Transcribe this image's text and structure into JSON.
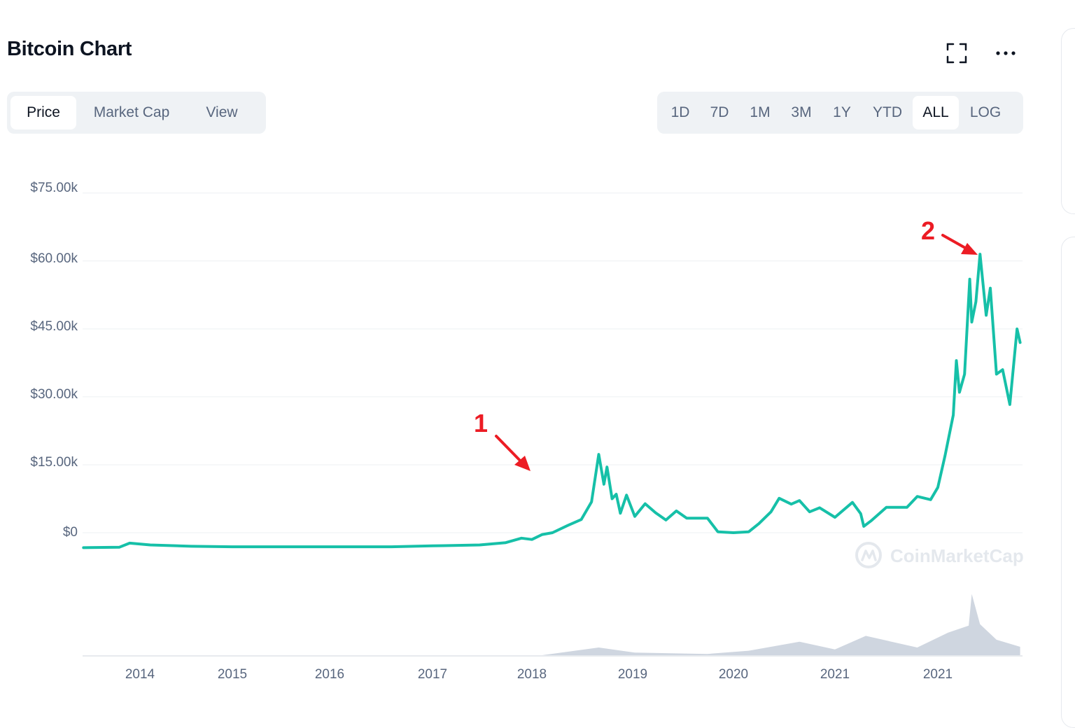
{
  "header": {
    "title": "Bitcoin Chart",
    "expand_icon": "fullscreen-icon",
    "more_icon": "more-horizontal-icon"
  },
  "left_tabs": [
    "Price",
    "Market Cap",
    "View"
  ],
  "left_active": "Price",
  "range_tabs": [
    "1D",
    "7D",
    "1M",
    "3M",
    "1Y",
    "YTD",
    "ALL",
    "LOG"
  ],
  "range_active": "ALL",
  "watermark": "CoinMarketCap",
  "annotations": [
    {
      "label": "1",
      "color": "#ec1c24"
    },
    {
      "label": "2",
      "color": "#ec1c24"
    }
  ],
  "colors": {
    "line": "#16c0a8",
    "volume": "#cfd6e0",
    "grid": "#eef0f3",
    "annotation": "#ec1c24"
  },
  "chart_data": {
    "type": "line",
    "title": "Bitcoin Chart",
    "xlabel": "",
    "ylabel": "",
    "y_tick_labels": [
      "$75.00k",
      "$60.00k",
      "$45.00k",
      "$30.00k",
      "$15.00k",
      "$0"
    ],
    "y_ticks": [
      75000,
      60000,
      45000,
      30000,
      15000,
      0
    ],
    "x_tick_labels": [
      "2014",
      "2015",
      "2016",
      "2017",
      "2018",
      "2019",
      "2020",
      "2021",
      "2021"
    ],
    "x_ticks": [
      2014.0,
      2014.9,
      2015.85,
      2016.85,
      2017.8,
      2018.78,
      2019.75,
      2020.75,
      2021.75
    ],
    "xlim": [
      2013.45,
      2022.6
    ],
    "ylim": [
      -4000,
      75000
    ],
    "grid": true,
    "series": [
      {
        "values": [
          [
            2013.45,
            -3300
          ],
          [
            2013.8,
            -3200
          ],
          [
            2013.9,
            -2300
          ],
          [
            2014.1,
            -2700
          ],
          [
            2014.5,
            -3000
          ],
          [
            2014.9,
            -3100
          ],
          [
            2015.85,
            -3100
          ],
          [
            2016.45,
            -3100
          ],
          [
            2016.85,
            -2900
          ],
          [
            2017.3,
            -2700
          ],
          [
            2017.55,
            -2200
          ],
          [
            2017.7,
            -1200
          ],
          [
            2017.8,
            -1500
          ],
          [
            2017.9,
            -400
          ],
          [
            2018.0,
            0
          ],
          [
            2018.15,
            1600
          ],
          [
            2018.28,
            2900
          ],
          [
            2018.38,
            6800
          ],
          [
            2018.45,
            17300
          ],
          [
            2018.5,
            10700
          ],
          [
            2018.53,
            14500
          ],
          [
            2018.58,
            7500
          ],
          [
            2018.62,
            8500
          ],
          [
            2018.66,
            4300
          ],
          [
            2018.72,
            8300
          ],
          [
            2018.8,
            3600
          ],
          [
            2018.9,
            6400
          ],
          [
            2019.0,
            4400
          ],
          [
            2019.1,
            2800
          ],
          [
            2019.2,
            4800
          ],
          [
            2019.3,
            3200
          ],
          [
            2019.5,
            3200
          ],
          [
            2019.6,
            200
          ],
          [
            2019.75,
            0
          ],
          [
            2019.9,
            200
          ],
          [
            2020.0,
            2000
          ],
          [
            2020.12,
            4600
          ],
          [
            2020.2,
            7600
          ],
          [
            2020.32,
            6300
          ],
          [
            2020.4,
            7100
          ],
          [
            2020.5,
            4600
          ],
          [
            2020.6,
            5500
          ],
          [
            2020.75,
            3400
          ],
          [
            2020.92,
            6700
          ],
          [
            2021.0,
            4200
          ],
          [
            2021.03,
            1400
          ],
          [
            2021.1,
            2600
          ],
          [
            2021.25,
            5600
          ],
          [
            2021.45,
            5600
          ],
          [
            2021.55,
            8000
          ],
          [
            2021.68,
            7300
          ],
          [
            2021.75,
            10000
          ],
          [
            2021.82,
            17000
          ],
          [
            2021.9,
            26000
          ],
          [
            2021.93,
            38000
          ],
          [
            2021.96,
            31000
          ],
          [
            2022.01,
            35000
          ],
          [
            2022.06,
            56000
          ],
          [
            2022.08,
            46500
          ],
          [
            2022.12,
            51000
          ],
          [
            2022.16,
            61500
          ],
          [
            2022.22,
            48000
          ],
          [
            2022.26,
            54000
          ],
          [
            2022.32,
            35000
          ],
          [
            2022.38,
            36000
          ],
          [
            2022.45,
            28300
          ],
          [
            2022.52,
            45000
          ],
          [
            2022.55,
            42000
          ]
        ]
      }
    ],
    "volume_series": [
      [
        2013.45,
        0
      ],
      [
        2017.9,
        0
      ],
      [
        2018.45,
        1200
      ],
      [
        2018.8,
        400
      ],
      [
        2019.5,
        200
      ],
      [
        2019.9,
        700
      ],
      [
        2020.4,
        2100
      ],
      [
        2020.75,
        900
      ],
      [
        2021.05,
        3000
      ],
      [
        2021.55,
        1200
      ],
      [
        2021.85,
        3500
      ],
      [
        2022.05,
        4600
      ],
      [
        2022.08,
        9500
      ],
      [
        2022.16,
        4800
      ],
      [
        2022.32,
        2400
      ],
      [
        2022.55,
        1300
      ]
    ]
  }
}
